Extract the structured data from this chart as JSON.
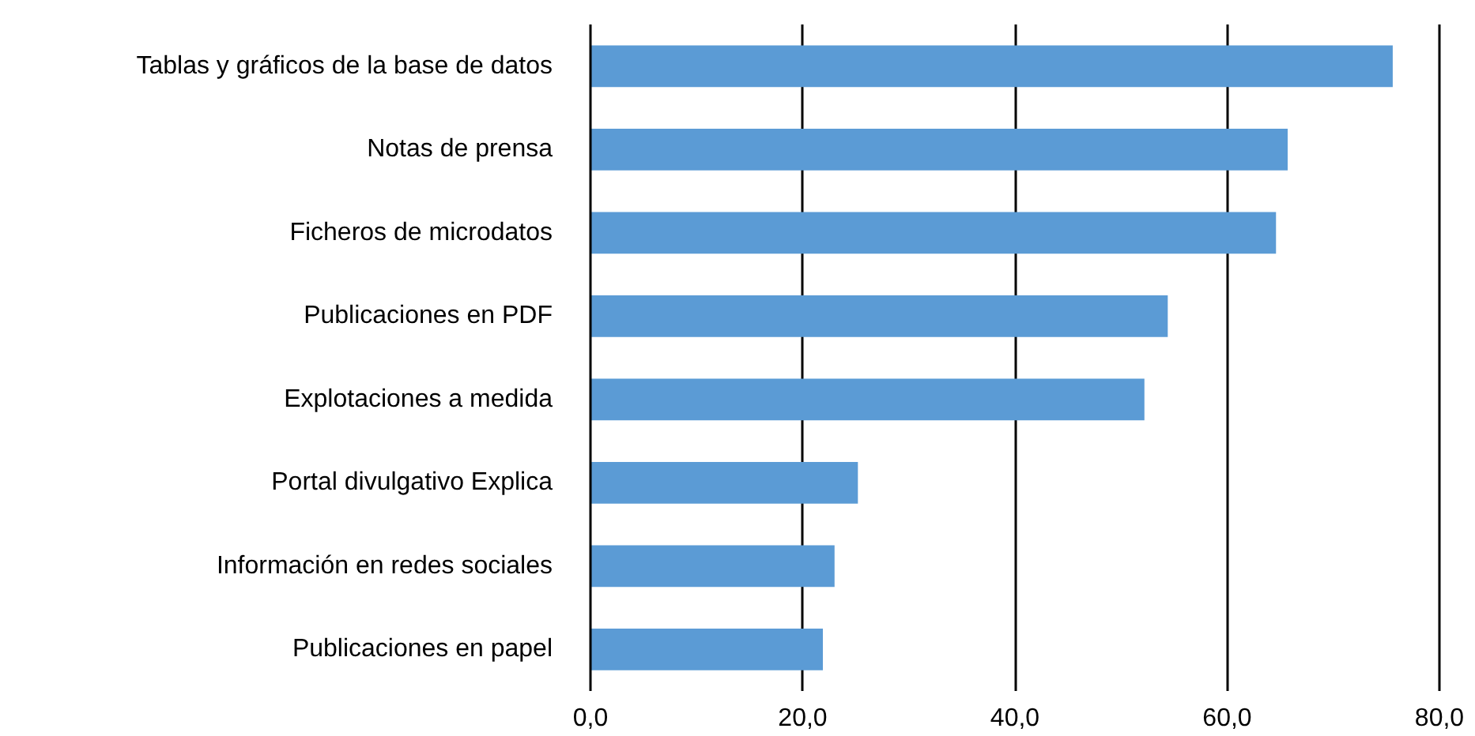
{
  "chart_data": {
    "type": "bar",
    "orientation": "horizontal",
    "categories": [
      "Tablas y gráficos de la base de datos",
      "Notas de prensa",
      "Ficheros de microdatos",
      "Publicaciones en PDF",
      "Explotaciones a medida",
      "Portal divulgativo Explica",
      "Información en redes sociales",
      "Publicaciones en papel"
    ],
    "values": [
      75.6,
      65.7,
      64.6,
      54.4,
      52.2,
      25.2,
      23.0,
      21.9
    ],
    "color": "#5b9bd5",
    "xlim": [
      0,
      80
    ],
    "xticks": [
      {
        "value": 0,
        "label": "0,0"
      },
      {
        "value": 20,
        "label": "20,0"
      },
      {
        "value": 40,
        "label": "40,0"
      },
      {
        "value": 60,
        "label": "60,0"
      },
      {
        "value": 80,
        "label": "80,0"
      }
    ],
    "grid": "x"
  }
}
